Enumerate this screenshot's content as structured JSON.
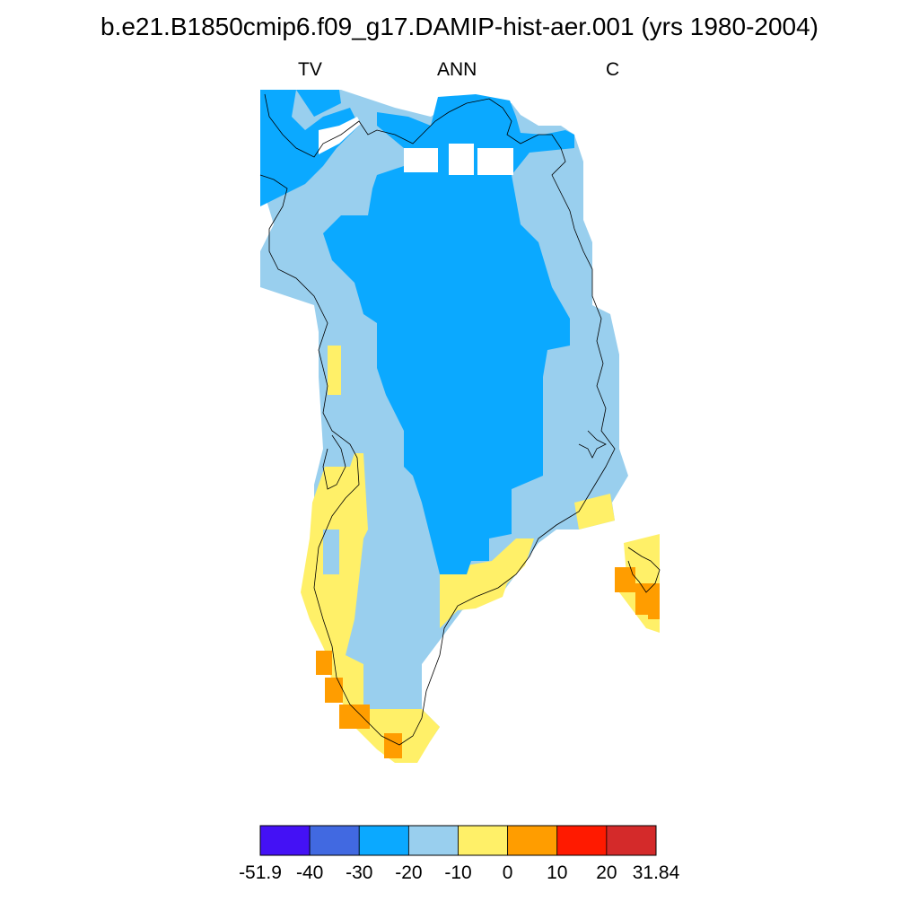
{
  "title": "b.e21.B1850cmip6.f09_g17.DAMIP-hist-aer.001 (yrs 1980-2004)",
  "subtitle": {
    "left": "TV",
    "center": "ANN",
    "right": "C"
  },
  "colorbar": {
    "levels": [
      "-51.9",
      "-40",
      "-30",
      "-20",
      "-10",
      "0",
      "10",
      "20",
      "31.84"
    ],
    "colors": [
      "#4411F5",
      "#4169E1",
      "#0BA9FF",
      "#99CFEE",
      "#FFF068",
      "#FF9D00",
      "#FF1A00",
      "#D42A2A"
    ]
  },
  "map_colors": {
    "level_-30_-20": "#0BA9FF",
    "level_-20_-10": "#99CFEE",
    "level_-10_0": "#FFF068",
    "level_0_10": "#FF9D00"
  }
}
